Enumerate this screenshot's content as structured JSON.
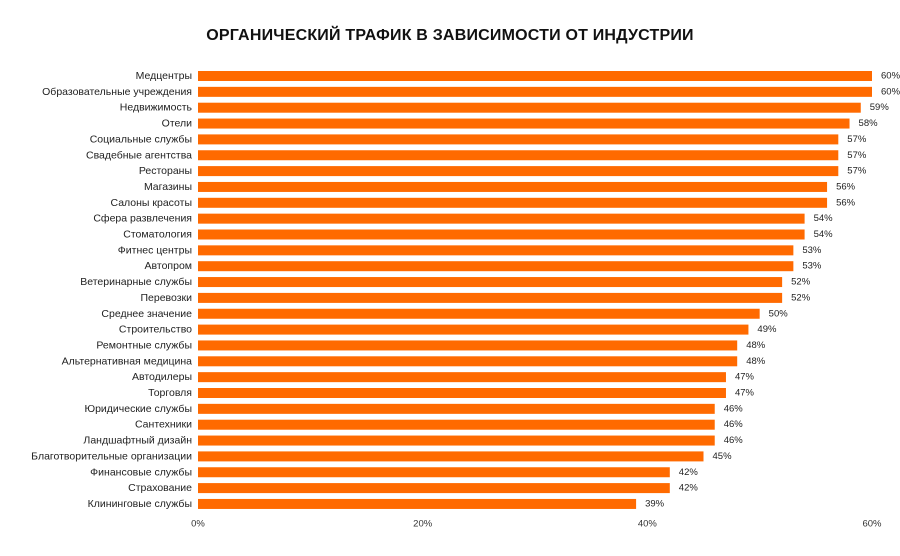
{
  "chart_data": {
    "type": "bar",
    "orientation": "horizontal",
    "title": "ОРГАНИЧЕСКИЙ ТРАФИК В ЗАВИСИМОСТИ ОТ ИНДУСТРИИ",
    "categories": [
      "Медцентры",
      "Образовательные учреждения",
      "Недвижимость",
      "Отели",
      "Социальные службы",
      "Свадебные агентства",
      "Рестораны",
      "Магазины",
      "Салоны красоты",
      "Сфера развлечения",
      "Стоматология",
      "Фитнес центры",
      "Автопром",
      "Ветеринарные службы",
      "Перевозки",
      "Среднее значение",
      "Строительство",
      "Ремонтные службы",
      "Альтернативная медицина",
      "Автодилеры",
      "Торговля",
      "Юридические службы",
      "Сантехники",
      "Ландшафтный дизайн",
      "Благотворительные организации",
      "Финансовые службы",
      "Страхование",
      "Клининговые службы"
    ],
    "values": [
      60,
      60,
      59,
      58,
      57,
      57,
      57,
      56,
      56,
      54,
      54,
      53,
      53,
      52,
      52,
      50,
      49,
      48,
      48,
      47,
      47,
      46,
      46,
      46,
      45,
      42,
      42,
      39
    ],
    "value_labels": [
      "60%",
      "60%",
      "59%",
      "58%",
      "57%",
      "57%",
      "57%",
      "56%",
      "56%",
      "54%",
      "54%",
      "53%",
      "53%",
      "52%",
      "52%",
      "50%",
      "49%",
      "48%",
      "48%",
      "47%",
      "47%",
      "46%",
      "46%",
      "46%",
      "45%",
      "42%",
      "42%",
      "39%"
    ],
    "xlim": [
      0,
      60
    ],
    "x_ticks": [
      0,
      20,
      40,
      60
    ],
    "x_tick_labels": [
      "0%",
      "20%",
      "40%",
      "60%"
    ],
    "xlabel": "",
    "ylabel": "",
    "grid": false,
    "legend": "none",
    "bar_color": "#FF6A00"
  }
}
